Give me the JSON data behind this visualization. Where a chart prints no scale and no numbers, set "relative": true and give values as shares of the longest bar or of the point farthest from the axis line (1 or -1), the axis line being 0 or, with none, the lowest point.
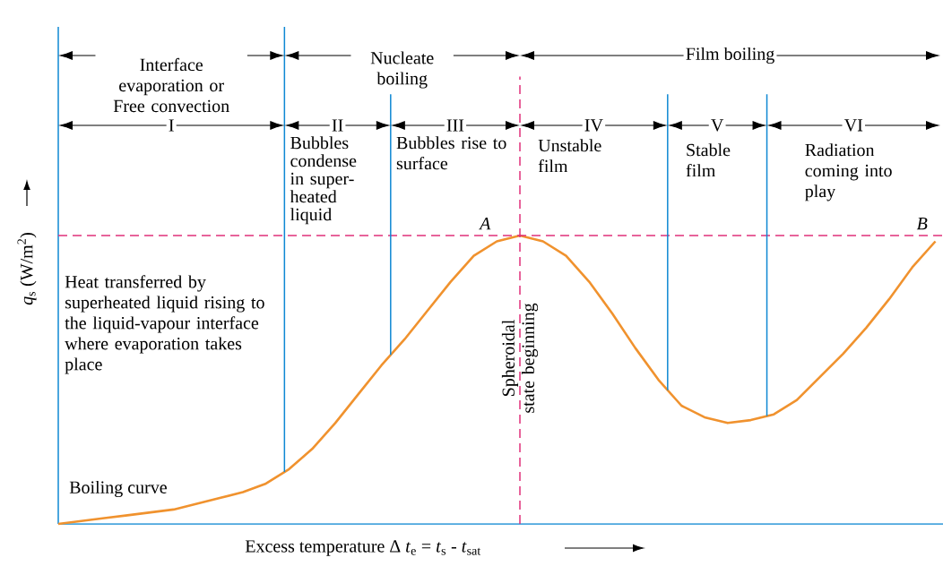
{
  "chart_data": {
    "type": "line",
    "relative": true,
    "xlabel": "Excess temperature Δ *t*$_{e}$ = *t*$_{s}$ - *t*$_{sat}$",
    "ylabel": "*q*$_{s}$ (W/m$^{2}$)",
    "categories": [
      null,
      null,
      null,
      null,
      null,
      null,
      null,
      null,
      null,
      null,
      null,
      null,
      null,
      null,
      null,
      null,
      null,
      null,
      null,
      null,
      null,
      null,
      null,
      null,
      null,
      null,
      null,
      null,
      null,
      null,
      null,
      null,
      null,
      null,
      null,
      null,
      null,
      null,
      null
    ],
    "series": [
      {
        "color": "#f0922e",
        "values": [
          0,
          0.01,
          0.02,
          0.03,
          0.04,
          0.05,
          0.07,
          0.09,
          0.11,
          0.14,
          0.19,
          0.26,
          0.35,
          0.45,
          0.55,
          0.64,
          0.74,
          0.84,
          0.93,
          0.98,
          1,
          0.98,
          0.93,
          0.84,
          0.73,
          0.61,
          0.5,
          0.41,
          0.37,
          0.35,
          0.36,
          0.38,
          0.43,
          0.51,
          0.59,
          0.68,
          0.78,
          0.89,
          0.98
        ]
      }
    ],
    "ref_lines": [
      {
        "axis": "y",
        "value": 1,
        "color": "#e0307a",
        "line_style": "dashed"
      }
    ],
    "annotations": [
      "Interface evaporation or Free convection",
      "Nucleate boiling",
      "Film boiling",
      "I",
      "II",
      "III",
      "IV",
      "V",
      "VI",
      "Bubbles condense in super-heated liquid",
      "Bubbles rise to surface",
      "Unstable film",
      "Stable film",
      "Radiation coming into play",
      "Heat transferred by superheated liquid rising to the liquid-vapour interface where evaporation takes place",
      "Boiling curve",
      "Spheroidal state beginning",
      {
        "text": "A",
        "y": 1
      },
      {
        "text": "B",
        "y": 1
      }
    ]
  }
}
